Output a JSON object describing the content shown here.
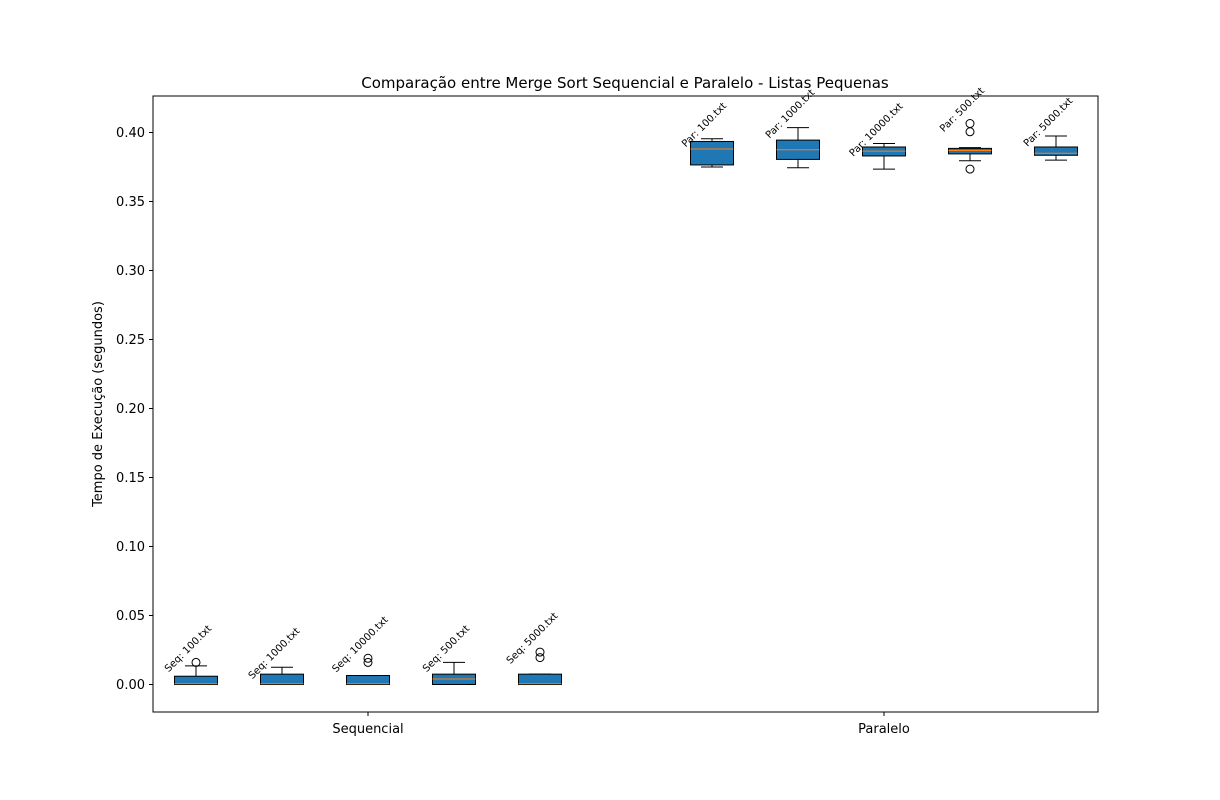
{
  "chart_data": {
    "type": "box",
    "title": "Comparação entre Merge Sort Sequencial e Paralelo - Listas Pequenas",
    "xlabel": "",
    "ylabel": "Tempo de Execução (segundos)",
    "ylim": [
      -0.02,
      0.427
    ],
    "yticks": [
      "0.00",
      "0.05",
      "0.10",
      "0.15",
      "0.20",
      "0.25",
      "0.30",
      "0.35",
      "0.40"
    ],
    "grid": false,
    "categories": [
      "Sequencial",
      "Paralelo"
    ],
    "box_color": "#1f77b4",
    "median_color": "#ff7f0e",
    "boxes": [
      {
        "label": "Seq: 100.txt",
        "group": "Sequencial",
        "whislo": 0.0,
        "q1": 0.0,
        "med": 0.0005,
        "q3": 0.006,
        "whishi": 0.0135,
        "fliers": [
          0.016
        ]
      },
      {
        "label": "Seq: 1000.txt",
        "group": "Sequencial",
        "whislo": 0.0,
        "q1": 0.0,
        "med": 0.0005,
        "q3": 0.0075,
        "whishi": 0.0125,
        "fliers": []
      },
      {
        "label": "Seq: 10000.txt",
        "group": "Sequencial",
        "whislo": 0.0,
        "q1": 0.0,
        "med": 0.0005,
        "q3": 0.0065,
        "whishi": 0.0065,
        "fliers": [
          0.016,
          0.019
        ]
      },
      {
        "label": "Seq: 500.txt",
        "group": "Sequencial",
        "whislo": 0.0,
        "q1": 0.0,
        "med": 0.004,
        "q3": 0.0075,
        "whishi": 0.016,
        "fliers": []
      },
      {
        "label": "Seq: 5000.txt",
        "group": "Sequencial",
        "whislo": 0.0,
        "q1": 0.0,
        "med": 0.0005,
        "q3": 0.0075,
        "whishi": 0.0075,
        "fliers": [
          0.0195,
          0.0235
        ]
      },
      {
        "label": "Par: 100.txt",
        "group": "Paralelo",
        "whislo": 0.375,
        "q1": 0.3765,
        "med": 0.388,
        "q3": 0.3935,
        "whishi": 0.3955,
        "fliers": []
      },
      {
        "label": "Par: 1000.txt",
        "group": "Paralelo",
        "whislo": 0.3745,
        "q1": 0.3805,
        "med": 0.3875,
        "q3": 0.3945,
        "whishi": 0.4035,
        "fliers": []
      },
      {
        "label": "Par: 10000.txt",
        "group": "Paralelo",
        "whislo": 0.3735,
        "q1": 0.383,
        "med": 0.3865,
        "q3": 0.3895,
        "whishi": 0.392,
        "fliers": []
      },
      {
        "label": "Par: 500.txt",
        "group": "Paralelo",
        "whislo": 0.3795,
        "q1": 0.3845,
        "med": 0.387,
        "q3": 0.3885,
        "whishi": 0.389,
        "fliers": [
          0.3735,
          0.4005,
          0.4065
        ]
      },
      {
        "label": "Par: 5000.txt",
        "group": "Paralelo",
        "whislo": 0.38,
        "q1": 0.3835,
        "med": 0.385,
        "q3": 0.3895,
        "whishi": 0.3975,
        "fliers": []
      }
    ]
  }
}
